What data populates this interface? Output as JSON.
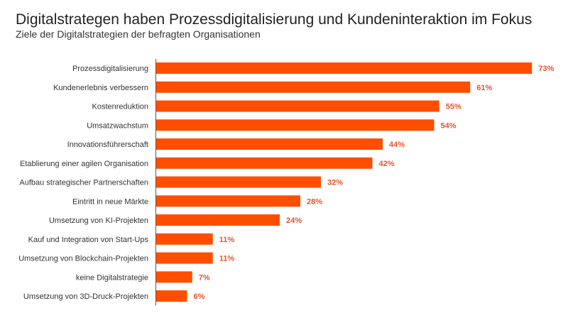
{
  "chart_data": {
    "type": "bar",
    "orientation": "horizontal",
    "title": "Digitalstrategen haben Prozessdigitalisierung und Kundeninteraktion im Fokus",
    "subtitle": "Ziele der Digitalstrategien der befragten Organisationen",
    "categories": [
      "Prozessdigitalisierung",
      "Kundenerlebnis verbessern",
      "Kostenreduktion",
      "Umsatzwachstum",
      "Innovationsführerschaft",
      "Etablierung einer agilen Organisation",
      "Aufbau strategischer Partnerschaften",
      "Eintritt in neue Märkte",
      "Umsetzung von KI-Projekten",
      "Kauf und Integration von Start-Ups",
      "Umsetzung von Blockchain-Projekten",
      "keine Digitalstrategie",
      "Umsetzung von 3D-Druck-Projekten"
    ],
    "values": [
      73,
      61,
      55,
      54,
      44,
      42,
      32,
      28,
      24,
      11,
      11,
      7,
      6
    ],
    "value_suffix": "%",
    "xlim": [
      0,
      80
    ],
    "grid": false,
    "colors": {
      "bar": "#ff4e00",
      "label": "#e8532b",
      "axis": "#555555"
    }
  }
}
